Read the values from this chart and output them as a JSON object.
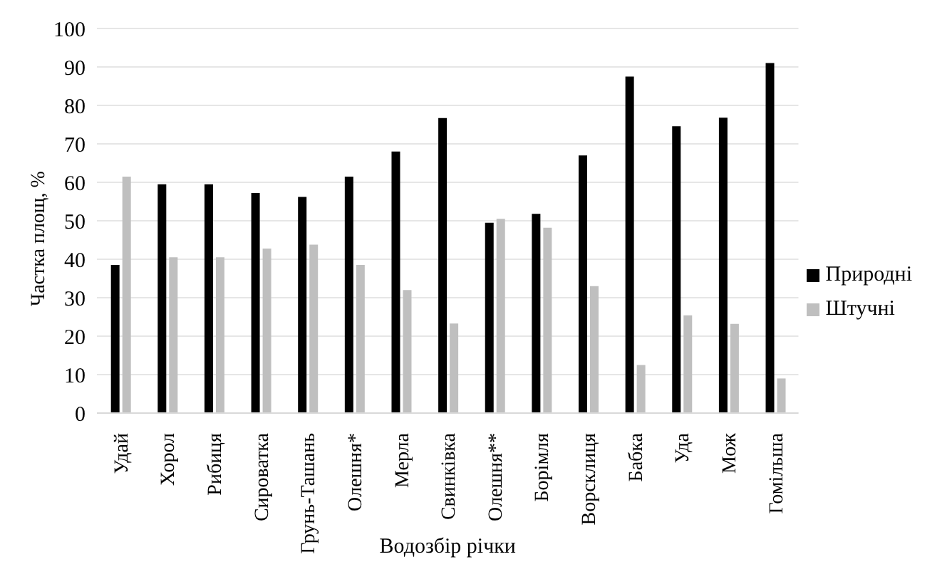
{
  "chart_data": {
    "type": "bar",
    "xlabel": "Водозбір річки",
    "ylabel": "Частка площ, %",
    "categories": [
      "Удай",
      "Хорол",
      "Рибиця",
      "Сироватка",
      "Грунь-Ташань",
      "Олешня*",
      "Мерла",
      "Свинківка",
      "Олешня**",
      "Борімля",
      "Ворсклиця",
      "Бабка",
      "Уда",
      "Мож",
      "Гомільша"
    ],
    "series": [
      {
        "name": "Природні",
        "color": "#000000",
        "values": [
          38.5,
          59.5,
          59.5,
          57.2,
          56.2,
          61.5,
          68,
          76.7,
          49.5,
          51.8,
          67,
          87.5,
          74.6,
          76.8,
          91
        ]
      },
      {
        "name": "Штучні",
        "color": "#bfbfbf",
        "values": [
          61.5,
          40.5,
          40.5,
          42.8,
          43.8,
          38.5,
          32,
          23.3,
          50.5,
          48.2,
          33,
          12.5,
          25.4,
          23.2,
          9
        ]
      }
    ],
    "ylim": [
      0,
      100
    ],
    "yticks": [
      0,
      10,
      20,
      30,
      40,
      50,
      60,
      70,
      80,
      90,
      100
    ],
    "grid": "y",
    "legend": "right"
  }
}
